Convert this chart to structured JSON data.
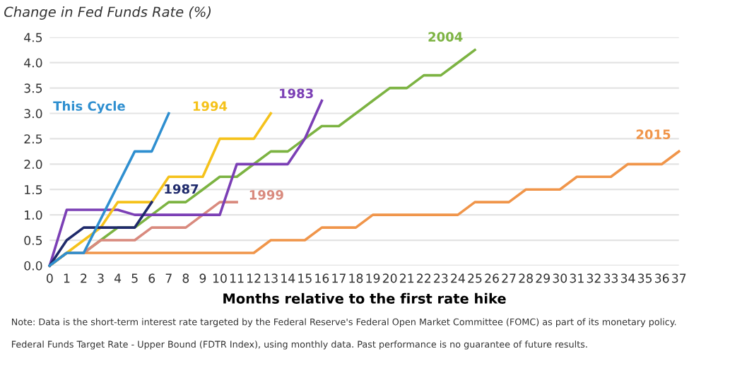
{
  "chart_data": {
    "type": "line",
    "title": "Change in Fed Funds Rate (%)",
    "xlabel": "Months relative to the first rate hike",
    "xlim": [
      0,
      37
    ],
    "xticks": [
      0,
      1,
      2,
      3,
      4,
      5,
      6,
      7,
      8,
      9,
      10,
      11,
      12,
      13,
      14,
      15,
      16,
      17,
      18,
      19,
      20,
      21,
      22,
      23,
      24,
      25,
      26,
      27,
      28,
      29,
      30,
      31,
      32,
      33,
      34,
      35,
      36,
      37
    ],
    "ylim": [
      0,
      4.5
    ],
    "yticks": [
      {
        "value": 0,
        "label": "0.0"
      },
      {
        "value": 0.5,
        "label": "0.5"
      },
      {
        "value": 1,
        "label": "1.0"
      },
      {
        "value": 1.5,
        "label": "1.5"
      },
      {
        "value": 2,
        "label": "2.0"
      },
      {
        "value": 2.5,
        "label": "2.5"
      },
      {
        "value": 3,
        "label": "3.0"
      },
      {
        "value": 3.5,
        "label": "3.5"
      },
      {
        "value": 4,
        "label": "4.0"
      },
      {
        "value": 4.5,
        "label": "4.5"
      }
    ],
    "grid": "y",
    "legend": false,
    "marker": "none",
    "line_style": "solid",
    "series": [
      {
        "name": "2015",
        "color": "#f0954a",
        "x": [
          0,
          1,
          12,
          13,
          15,
          16,
          18,
          19,
          24,
          25,
          27,
          28,
          30,
          31,
          33,
          34,
          36,
          37
        ],
        "values": [
          0,
          0.25,
          0.25,
          0.5,
          0.5,
          0.75,
          0.75,
          1.0,
          1.0,
          1.25,
          1.25,
          1.5,
          1.5,
          1.75,
          1.75,
          2.0,
          2.0,
          2.25
        ]
      },
      {
        "name": "2004",
        "color": "#7cb342",
        "x": [
          0,
          1,
          2,
          3,
          4,
          5,
          6,
          7,
          8,
          9,
          10,
          11,
          12,
          13,
          14,
          15,
          16,
          17,
          18,
          19,
          20,
          21,
          22,
          23,
          24,
          25
        ],
        "values": [
          0,
          0.25,
          0.25,
          0.5,
          0.75,
          0.75,
          1.0,
          1.25,
          1.25,
          1.5,
          1.75,
          1.75,
          2.0,
          2.25,
          2.25,
          2.5,
          2.75,
          2.75,
          3.0,
          3.25,
          3.5,
          3.5,
          3.75,
          3.75,
          4.0,
          4.25
        ]
      },
      {
        "name": "1999",
        "color": "#d98a7e",
        "x": [
          0,
          1,
          2,
          3,
          4,
          5,
          6,
          7,
          8,
          9,
          10,
          11
        ],
        "values": [
          0,
          0.25,
          0.25,
          0.5,
          0.5,
          0.5,
          0.75,
          0.75,
          0.75,
          1.0,
          1.25,
          1.25
        ]
      },
      {
        "name": "1983",
        "color": "#7b3fb5",
        "x": [
          0,
          1,
          2,
          3,
          4,
          5,
          6,
          7,
          8,
          9,
          10,
          11,
          12,
          13,
          14,
          15,
          16
        ],
        "values": [
          0,
          1.1,
          1.1,
          1.1,
          1.1,
          1.0,
          1.0,
          1.0,
          1.0,
          1.0,
          1.0,
          2.0,
          2.0,
          2.0,
          2.0,
          2.5,
          3.25
        ]
      },
      {
        "name": "1994",
        "color": "#f5c21b",
        "x": [
          0,
          1,
          2,
          3,
          4,
          5,
          6,
          7,
          8,
          9,
          10,
          11,
          12,
          13
        ],
        "values": [
          0,
          0.25,
          0.5,
          0.75,
          1.25,
          1.25,
          1.25,
          1.75,
          1.75,
          1.75,
          2.5,
          2.5,
          2.5,
          3.0
        ]
      },
      {
        "name": "1987",
        "color": "#1f2a6b",
        "x": [
          0,
          1,
          2,
          3,
          4,
          5,
          6
        ],
        "values": [
          0,
          0.5,
          0.75,
          0.75,
          0.75,
          0.75,
          1.25
        ]
      },
      {
        "name": "This Cycle",
        "color": "#2f8fd0",
        "x": [
          0,
          1,
          2,
          5,
          6,
          7
        ],
        "values": [
          0,
          0.25,
          0.25,
          2.25,
          2.25,
          3.0
        ]
      }
    ],
    "annotations": [
      "Note: Data is the short-term interest rate targeted by the Federal Reserve's Federal Open Market Committee (FOMC) as part of its monetary policy.",
      "Federal Funds Target Rate - Upper Bound (FDTR Index), using monthly data. Past performance is no guarantee of future results."
    ]
  }
}
